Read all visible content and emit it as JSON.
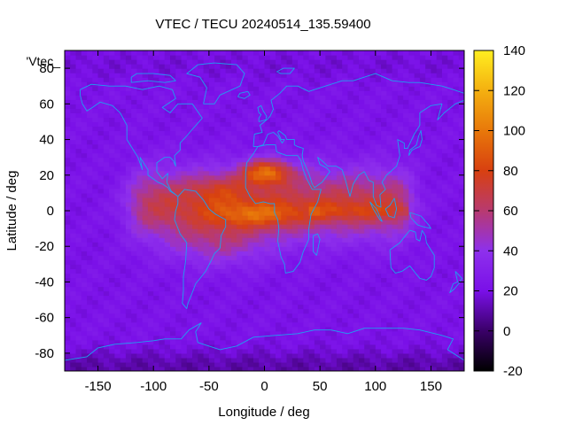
{
  "chart_data": {
    "type": "heatmap",
    "title": "VTEC / TECU 20240514_135.59400",
    "xlabel": "Longitude / deg",
    "ylabel": "Latitude / deg",
    "xlim": [
      -180,
      180
    ],
    "ylim": [
      -90,
      90
    ],
    "x_ticks": [
      -150,
      -100,
      -50,
      0,
      50,
      100,
      150
    ],
    "y_ticks": [
      -80,
      -60,
      -40,
      -20,
      0,
      20,
      40,
      60,
      80
    ],
    "colorbar": {
      "range": [
        -20,
        140
      ],
      "ticks": [
        -20,
        0,
        20,
        40,
        60,
        80,
        100,
        120,
        140
      ],
      "palette": [
        "#000000",
        "#3a0068",
        "#7a10e8",
        "#8e30ec",
        "#b83a70",
        "#d84010",
        "#e8780a",
        "#f4b010",
        "#ffee20"
      ]
    },
    "key_label": "'Vtec_",
    "field": {
      "background_vtec": 22,
      "peak_vtec": 128,
      "peak_location": {
        "lon": 2,
        "lat": 22
      },
      "enhanced_region": {
        "lon_range": [
          -125,
          130
        ],
        "lat_range": [
          -35,
          32
        ]
      }
    },
    "coastline_color": "#1ea0f0"
  }
}
